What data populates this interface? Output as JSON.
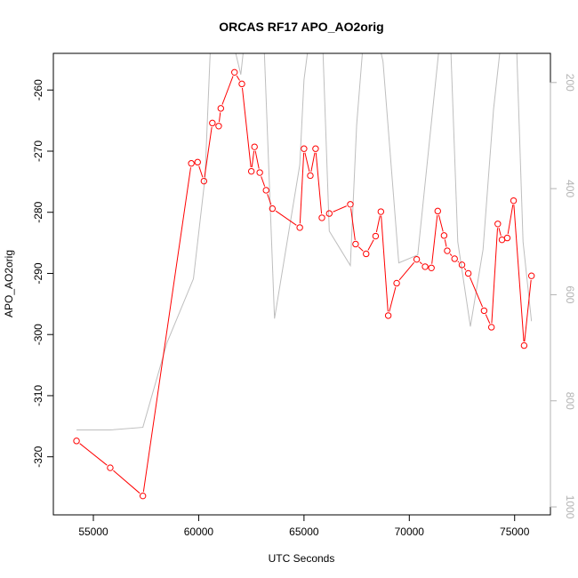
{
  "chart_data": {
    "type": "line",
    "title": "ORCAS RF17 APO_AO2orig",
    "xlabel": "UTC Seconds",
    "ylabel": "APO_AO2orig",
    "xlim": [
      53100,
      76700
    ],
    "ylim": [
      -329.5,
      -254.0
    ],
    "y2lim": [
      1015,
      145
    ],
    "xticks": [
      55000,
      60000,
      65000,
      70000,
      75000
    ],
    "yticks": [
      -320,
      -310,
      -300,
      -290,
      -280,
      -270,
      -260
    ],
    "y2ticks": [
      200,
      400,
      600,
      800,
      1000
    ],
    "colors": {
      "apo": "#ff0000",
      "alt": "#bebebe"
    },
    "series": [
      {
        "key": "apo",
        "axis": "left",
        "markers": true,
        "x": [
          54200,
          55800,
          57350,
          59650,
          59950,
          60250,
          60650,
          60950,
          61050,
          61700,
          62050,
          62500,
          62650,
          62900,
          63200,
          63500,
          64800,
          65000,
          65300,
          65550,
          65850,
          66200,
          67200,
          67450,
          67950,
          68400,
          68650,
          69000,
          69400,
          70350,
          70750,
          71050,
          71350,
          71650,
          71800,
          72150,
          72500,
          72800,
          73550,
          73900,
          74200,
          74400,
          74650,
          74950,
          75450,
          75800
        ],
        "y": [
          -317.4,
          -321.8,
          -326.4,
          -272.0,
          -271.8,
          -274.9,
          -265.4,
          -265.9,
          -263.0,
          -257.1,
          -259.0,
          -273.3,
          -269.3,
          -273.5,
          -276.4,
          -279.4,
          -282.5,
          -269.6,
          -274.0,
          -269.6,
          -280.9,
          -280.2,
          -278.7,
          -285.2,
          -286.8,
          -283.9,
          -279.9,
          -296.9,
          -291.6,
          -287.7,
          -288.9,
          -289.1,
          -279.8,
          -283.8,
          -286.3,
          -287.6,
          -288.6,
          -290.0,
          -296.1,
          -298.8,
          -281.9,
          -284.5,
          -284.2,
          -278.1,
          -301.8,
          -290.4
        ]
      },
      {
        "key": "alt",
        "axis": "right",
        "markers": false,
        "x": [
          54200,
          55800,
          57350,
          58500,
          59750,
          60300,
          60550,
          61000,
          61700,
          62000,
          62450,
          62750,
          63000,
          63600,
          64800,
          65000,
          65500,
          65900,
          66200,
          67200,
          67500,
          68000,
          68750,
          69500,
          70400,
          71400,
          71900,
          72300,
          72900,
          73500,
          74000,
          74500,
          75000,
          75400,
          75800
        ],
        "y": [
          855,
          855,
          850,
          690,
          570,
          380,
          140,
          130,
          135,
          185,
          20,
          60,
          20,
          645,
          355,
          195,
          40,
          140,
          480,
          545,
          280,
          30,
          160,
          540,
          525,
          140,
          60,
          500,
          660,
          515,
          250,
          70,
          20,
          500,
          650
        ]
      }
    ]
  }
}
